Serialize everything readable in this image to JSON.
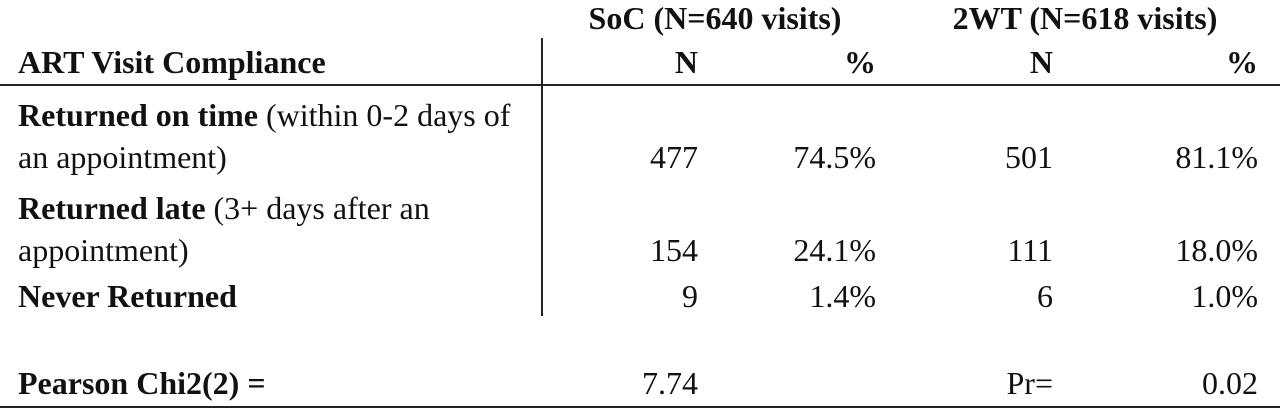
{
  "table": {
    "groups": [
      "SoC (N=640 visits)",
      "2WT (N=618 visits)"
    ],
    "row_header": "ART Visit Compliance",
    "columns": [
      "N",
      "%",
      "N",
      "%"
    ],
    "rows": [
      {
        "label": "Returned on time",
        "detail": "(within 0-2 days of an appointment)",
        "cells": [
          "477",
          "74.5%",
          "501",
          "81.1%"
        ]
      },
      {
        "label": "Returned late",
        "detail": "(3+ days after an appointment)",
        "cells": [
          "154",
          "24.1%",
          "111",
          "18.0%"
        ]
      },
      {
        "label": "Never Returned",
        "cells": [
          "9",
          "1.4%",
          "6",
          "1.0%"
        ]
      }
    ],
    "test": {
      "label": "Pearson Chi2(2) =",
      "value": "7.74",
      "p_label": "Pr=",
      "p_value": "0.02"
    }
  }
}
